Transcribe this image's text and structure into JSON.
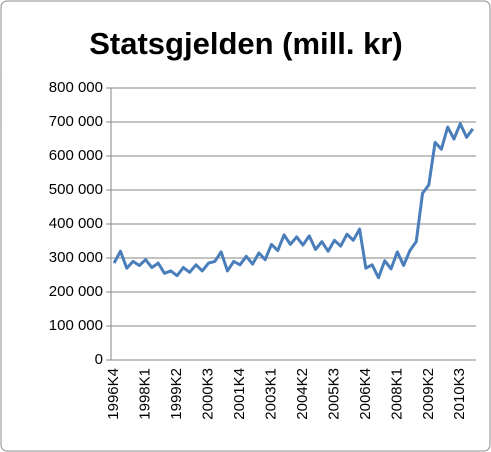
{
  "chart_data": {
    "type": "line",
    "title": "Statsgjelden (mill. kr)",
    "categories": [
      "1996K4",
      null,
      null,
      null,
      null,
      "1998K1",
      null,
      null,
      null,
      null,
      "1999K2",
      null,
      null,
      null,
      null,
      "2000K3",
      null,
      null,
      null,
      null,
      "2001K4",
      null,
      null,
      null,
      null,
      "2003K1",
      null,
      null,
      null,
      null,
      "2004K2",
      null,
      null,
      null,
      null,
      "2005K3",
      null,
      null,
      null,
      null,
      "2006K4",
      null,
      null,
      null,
      null,
      "2008K1",
      null,
      null,
      null,
      null,
      "2009K2",
      null,
      null,
      null,
      null,
      "2010K3",
      null,
      null
    ],
    "values": [
      285000,
      320000,
      270000,
      290000,
      278000,
      295000,
      272000,
      285000,
      255000,
      262000,
      248000,
      272000,
      258000,
      280000,
      262000,
      285000,
      290000,
      318000,
      262000,
      290000,
      280000,
      305000,
      282000,
      315000,
      295000,
      340000,
      322000,
      368000,
      340000,
      362000,
      338000,
      365000,
      325000,
      348000,
      320000,
      352000,
      335000,
      370000,
      352000,
      385000,
      270000,
      280000,
      242000,
      292000,
      268000,
      318000,
      278000,
      322000,
      348000,
      490000,
      515000,
      640000,
      620000,
      685000,
      650000,
      695000,
      655000,
      680000
    ],
    "color": "#4a7ebb",
    "ylim": [
      0,
      800000
    ],
    "yticks": [
      0,
      {
        "value": 100000,
        "label": "100 000"
      },
      {
        "value": 200000,
        "label": "200 000"
      },
      {
        "value": 300000,
        "label": "300 000"
      },
      {
        "value": 400000,
        "label": "400 000"
      },
      {
        "value": 500000,
        "label": "500 000"
      },
      {
        "value": 600000,
        "label": "600 000"
      },
      {
        "value": 700000,
        "label": "700 000"
      },
      {
        "value": 800000,
        "label": "800 000"
      }
    ],
    "grid": true
  }
}
